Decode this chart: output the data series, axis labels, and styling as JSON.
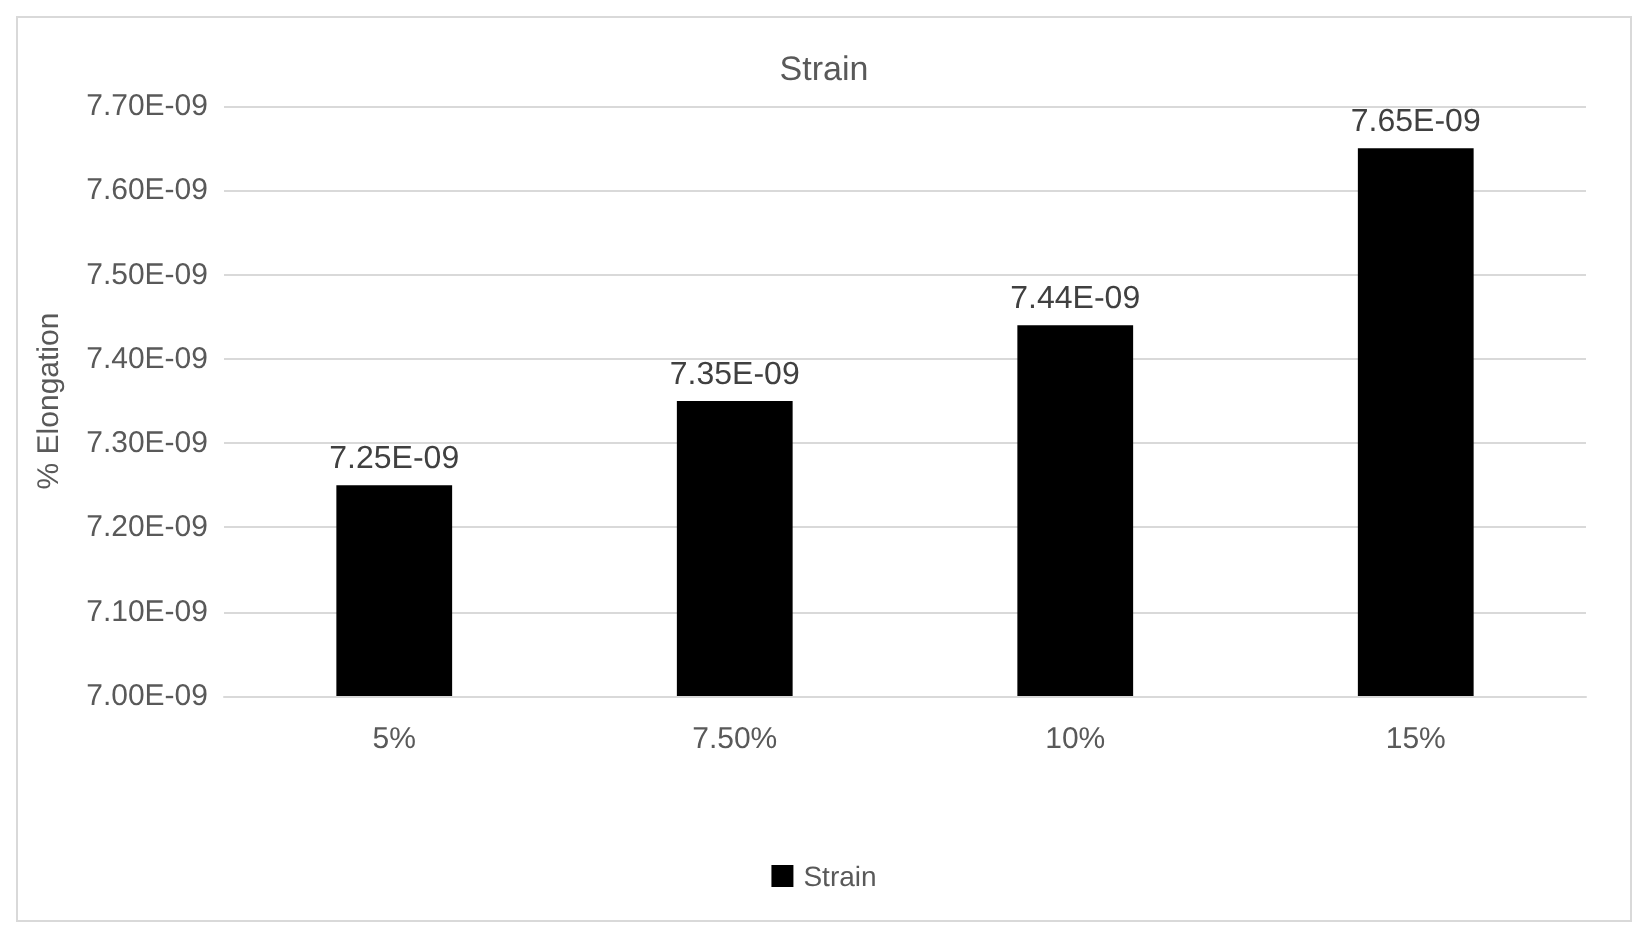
{
  "chart_data": {
    "type": "bar",
    "title": "Strain",
    "ylabel": "% Elongation",
    "categories": [
      "5%",
      "7.50%",
      "10%",
      "15%"
    ],
    "series": [
      {
        "name": "Strain",
        "color": "#000000",
        "values": [
          7.25e-09,
          7.35e-09,
          7.44e-09,
          7.65e-09
        ],
        "value_labels": [
          "7.25E-09",
          "7.35E-09",
          "7.44E-09",
          "7.65E-09"
        ]
      }
    ],
    "ylim": [
      7e-09,
      7.7e-09
    ],
    "yticks": [
      {
        "value": 7e-09,
        "label": "7.00E-09"
      },
      {
        "value": 7.1e-09,
        "label": "7.10E-09"
      },
      {
        "value": 7.2e-09,
        "label": "7.20E-09"
      },
      {
        "value": 7.3e-09,
        "label": "7.30E-09"
      },
      {
        "value": 7.4e-09,
        "label": "7.40E-09"
      },
      {
        "value": 7.5e-09,
        "label": "7.50E-09"
      },
      {
        "value": 7.6e-09,
        "label": "7.60E-09"
      },
      {
        "value": 7.7e-09,
        "label": "7.70E-09"
      }
    ],
    "grid": "y",
    "legend": "bottom"
  }
}
